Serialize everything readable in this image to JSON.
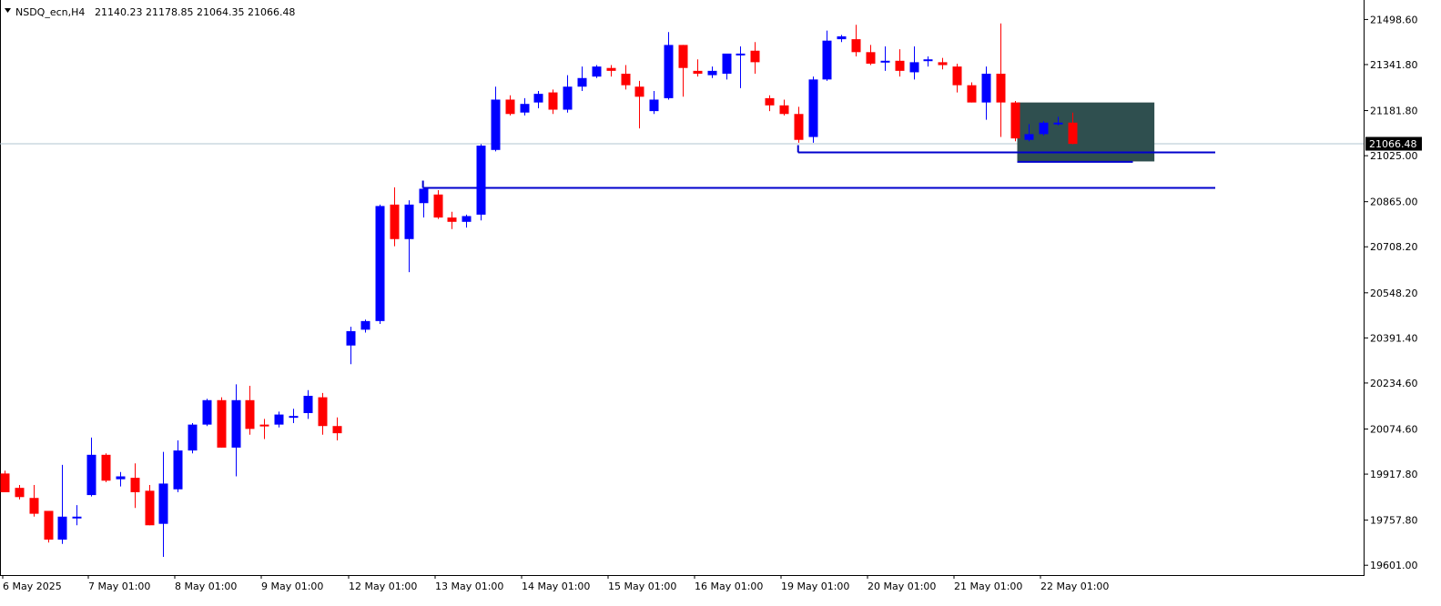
{
  "header": {
    "symbol": "NSDQ_ecn,H4",
    "ohlc": "21140.23 21178.85 21064.35 21066.48",
    "menu_icon": "triangle-down-icon"
  },
  "price_scale": {
    "labels": [
      "21498.60",
      "21341.80",
      "21181.80",
      "21025.00",
      "20865.00",
      "20708.20",
      "20548.20",
      "20391.40",
      "20234.60",
      "20074.60",
      "19917.80",
      "19757.80",
      "19601.00"
    ],
    "current_price": "21066.48"
  },
  "time_axis": {
    "labels": [
      "6 May 2025",
      "7 May 01:00",
      "8 May 01:00",
      "9 May 01:00",
      "12 May 01:00",
      "13 May 01:00",
      "14 May 01:00",
      "15 May 01:00",
      "16 May 01:00",
      "19 May 01:00",
      "20 May 01:00",
      "21 May 01:00",
      "22 May 01:00"
    ]
  },
  "colors": {
    "bull": "#0000ff",
    "bear": "#ff0000",
    "level_line": "#0000cd",
    "zone_fill": "#2f4f4f",
    "price_line": "#b0c4d0",
    "label_bg": "#000000",
    "label_text": "#ffffff"
  },
  "chart_data": {
    "type": "candlestick",
    "symbol": "NSDQ_ecn",
    "timeframe": "H4",
    "ylim": [
      19570,
      21560
    ],
    "candles": [
      {
        "o": 19920,
        "h": 19930,
        "l": 19860,
        "c": 19855
      },
      {
        "o": 19870,
        "h": 19880,
        "l": 19830,
        "c": 19838
      },
      {
        "o": 19835,
        "h": 19880,
        "l": 19770,
        "c": 19780
      },
      {
        "o": 19790,
        "h": 19790,
        "l": 19680,
        "c": 19690
      },
      {
        "o": 19690,
        "h": 19950,
        "l": 19675,
        "c": 19770
      },
      {
        "o": 19770,
        "h": 19810,
        "l": 19740,
        "c": 19770
      },
      {
        "o": 19845,
        "h": 20045,
        "l": 19840,
        "c": 19985
      },
      {
        "o": 19985,
        "h": 19990,
        "l": 19890,
        "c": 19895
      },
      {
        "o": 19900,
        "h": 19925,
        "l": 19875,
        "c": 19910
      },
      {
        "o": 19905,
        "h": 19955,
        "l": 19800,
        "c": 19855
      },
      {
        "o": 19860,
        "h": 19880,
        "l": 19740,
        "c": 19740
      },
      {
        "o": 19745,
        "h": 19995,
        "l": 19630,
        "c": 19885
      },
      {
        "o": 19865,
        "h": 20035,
        "l": 19855,
        "c": 20000
      },
      {
        "o": 20000,
        "h": 20095,
        "l": 19990,
        "c": 20090
      },
      {
        "o": 20090,
        "h": 20180,
        "l": 20085,
        "c": 20175
      },
      {
        "o": 20175,
        "h": 20185,
        "l": 20010,
        "c": 20010
      },
      {
        "o": 20010,
        "h": 20230,
        "l": 19910,
        "c": 20175
      },
      {
        "o": 20175,
        "h": 20225,
        "l": 20055,
        "c": 20075
      },
      {
        "o": 20090,
        "h": 20110,
        "l": 20040,
        "c": 20085
      },
      {
        "o": 20090,
        "h": 20135,
        "l": 20080,
        "c": 20125
      },
      {
        "o": 20115,
        "h": 20145,
        "l": 20095,
        "c": 20120
      },
      {
        "o": 20130,
        "h": 20210,
        "l": 20110,
        "c": 20190
      },
      {
        "o": 20185,
        "h": 20200,
        "l": 20055,
        "c": 20085
      },
      {
        "o": 20085,
        "h": 20115,
        "l": 20035,
        "c": 20060
      },
      {
        "o": 20365,
        "h": 20430,
        "l": 20300,
        "c": 20415
      },
      {
        "o": 20420,
        "h": 20455,
        "l": 20410,
        "c": 20450
      },
      {
        "o": 20450,
        "h": 20855,
        "l": 20440,
        "c": 20850
      },
      {
        "o": 20855,
        "h": 20915,
        "l": 20710,
        "c": 20735
      },
      {
        "o": 20735,
        "h": 20870,
        "l": 20620,
        "c": 20855
      },
      {
        "o": 20860,
        "h": 20915,
        "l": 20810,
        "c": 20910
      },
      {
        "o": 20890,
        "h": 20905,
        "l": 20805,
        "c": 20810
      },
      {
        "o": 20810,
        "h": 20830,
        "l": 20770,
        "c": 20795
      },
      {
        "o": 20795,
        "h": 20820,
        "l": 20775,
        "c": 20815
      },
      {
        "o": 20820,
        "h": 21065,
        "l": 20800,
        "c": 21060
      },
      {
        "o": 21045,
        "h": 21265,
        "l": 21040,
        "c": 21220
      },
      {
        "o": 21220,
        "h": 21235,
        "l": 21165,
        "c": 21170
      },
      {
        "o": 21175,
        "h": 21225,
        "l": 21165,
        "c": 21205
      },
      {
        "o": 21210,
        "h": 21250,
        "l": 21190,
        "c": 21240
      },
      {
        "o": 21245,
        "h": 21255,
        "l": 21170,
        "c": 21185
      },
      {
        "o": 21185,
        "h": 21305,
        "l": 21175,
        "c": 21265
      },
      {
        "o": 21265,
        "h": 21335,
        "l": 21250,
        "c": 21295
      },
      {
        "o": 21300,
        "h": 21340,
        "l": 21295,
        "c": 21335
      },
      {
        "o": 21330,
        "h": 21340,
        "l": 21300,
        "c": 21320
      },
      {
        "o": 21310,
        "h": 21340,
        "l": 21255,
        "c": 21270
      },
      {
        "o": 21265,
        "h": 21285,
        "l": 21120,
        "c": 21230
      },
      {
        "o": 21180,
        "h": 21250,
        "l": 21170,
        "c": 21220
      },
      {
        "o": 21225,
        "h": 21455,
        "l": 21220,
        "c": 21410
      },
      {
        "o": 21410,
        "h": 21410,
        "l": 21230,
        "c": 21330
      },
      {
        "o": 21320,
        "h": 21360,
        "l": 21300,
        "c": 21310
      },
      {
        "o": 21305,
        "h": 21335,
        "l": 21295,
        "c": 21320
      },
      {
        "o": 21310,
        "h": 21375,
        "l": 21290,
        "c": 21380
      },
      {
        "o": 21375,
        "h": 21405,
        "l": 21260,
        "c": 21380
      },
      {
        "o": 21390,
        "h": 21420,
        "l": 21310,
        "c": 21350
      },
      {
        "o": 21225,
        "h": 21235,
        "l": 21180,
        "c": 21200
      },
      {
        "o": 21200,
        "h": 21220,
        "l": 21165,
        "c": 21170
      },
      {
        "o": 21170,
        "h": 21195,
        "l": 21070,
        "c": 21080
      },
      {
        "o": 21090,
        "h": 21300,
        "l": 21070,
        "c": 21290
      },
      {
        "o": 21290,
        "h": 21460,
        "l": 21285,
        "c": 21425
      },
      {
        "o": 21430,
        "h": 21445,
        "l": 21420,
        "c": 21440
      },
      {
        "o": 21430,
        "h": 21480,
        "l": 21370,
        "c": 21385
      },
      {
        "o": 21385,
        "h": 21410,
        "l": 21340,
        "c": 21345
      },
      {
        "o": 21350,
        "h": 21405,
        "l": 21320,
        "c": 21355
      },
      {
        "o": 21355,
        "h": 21395,
        "l": 21300,
        "c": 21320
      },
      {
        "o": 21315,
        "h": 21405,
        "l": 21290,
        "c": 21350
      },
      {
        "o": 21355,
        "h": 21370,
        "l": 21335,
        "c": 21360
      },
      {
        "o": 21350,
        "h": 21365,
        "l": 21325,
        "c": 21340
      },
      {
        "o": 21335,
        "h": 21345,
        "l": 21245,
        "c": 21270
      },
      {
        "o": 21270,
        "h": 21280,
        "l": 21210,
        "c": 21210
      },
      {
        "o": 21210,
        "h": 21335,
        "l": 21150,
        "c": 21310
      },
      {
        "o": 21310,
        "h": 21485,
        "l": 21090,
        "c": 21210
      },
      {
        "o": 21210,
        "h": 21215,
        "l": 21075,
        "c": 21085
      },
      {
        "o": 21080,
        "h": 21135,
        "l": 21075,
        "c": 21100
      },
      {
        "o": 21100,
        "h": 21145,
        "l": 21095,
        "c": 21140
      },
      {
        "o": 21140,
        "h": 21160,
        "l": 21130,
        "c": 21140
      },
      {
        "o": 21140,
        "h": 21175,
        "l": 21065,
        "c": 21066
      }
    ],
    "levels": [
      {
        "price": 21038,
        "from_candle": 55
      },
      {
        "price": 20915,
        "from_candle": 29
      }
    ],
    "zone": {
      "top": 21210,
      "bottom": 21005,
      "from_candle": 70,
      "to_candle": 79
    }
  }
}
